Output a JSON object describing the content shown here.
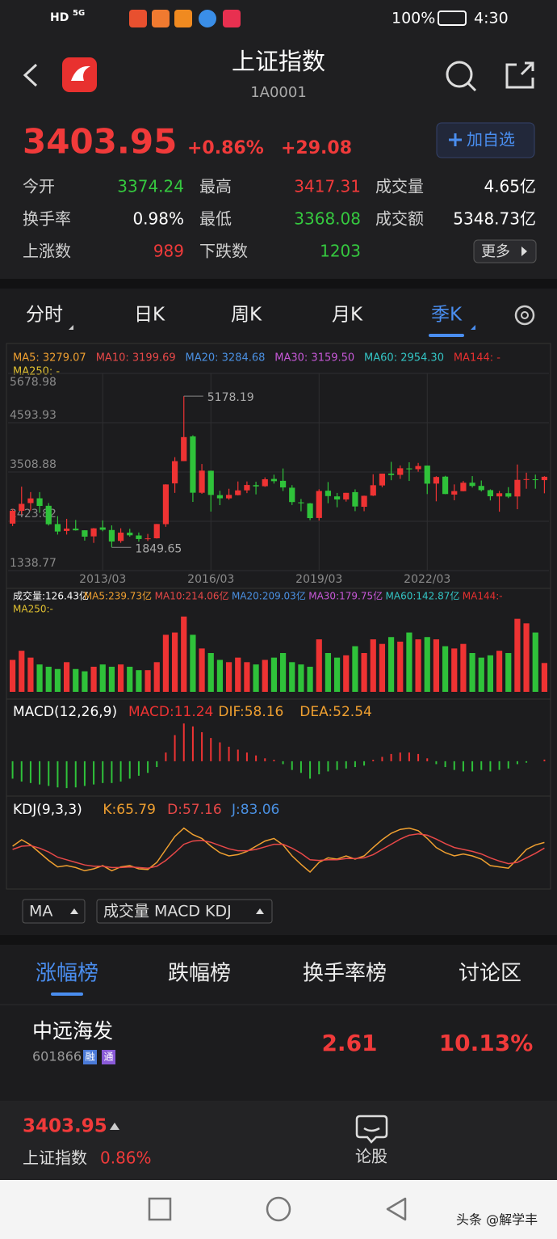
{
  "status_bar": {
    "hd": "HD",
    "network": "5G",
    "battery": "100%",
    "time": "4:30"
  },
  "header": {
    "title": "上证指数",
    "code": "1A0001"
  },
  "quote": {
    "price": "3403.95",
    "change_pct": "+0.86%",
    "change": "+29.08",
    "add_button": "加自选"
  },
  "stats": [
    {
      "label": "今开",
      "value": "3374.24",
      "color": "#35c83f"
    },
    {
      "label": "最高",
      "value": "3417.31",
      "color": "#f03a3a"
    },
    {
      "label": "成交量",
      "value": "4.65亿",
      "color": "#ffffff"
    },
    {
      "label": "换手率",
      "value": "0.98%",
      "color": "#ffffff"
    },
    {
      "label": "最低",
      "value": "3368.08",
      "color": "#35c83f"
    },
    {
      "label": "成交额",
      "value": "5348.73亿",
      "color": "#ffffff"
    },
    {
      "label": "上涨数",
      "value": "989",
      "color": "#f03a3a"
    },
    {
      "label": "下跌数",
      "value": "1203",
      "color": "#35c83f"
    }
  ],
  "more_button": "更多",
  "tabs": [
    "分时",
    "日K",
    "周K",
    "月K",
    "季K"
  ],
  "active_tab": 4,
  "chart_data": {
    "type": "candlestick",
    "ma_legend": [
      {
        "text": "MA5: 3279.07",
        "color": "#f0a030"
      },
      {
        "text": "MA10: 3199.69",
        "color": "#e84848"
      },
      {
        "text": "MA20: 3284.68",
        "color": "#4a90e2"
      },
      {
        "text": "MA30: 3159.50",
        "color": "#c758d8"
      },
      {
        "text": "MA60: 2954.30",
        "color": "#33c4c4"
      },
      {
        "text": "MA144: -",
        "color": "#e83030"
      },
      {
        "text": "MA250: -",
        "color": "#e0c030"
      }
    ],
    "categories": [
      null,
      null,
      null,
      null,
      null,
      null,
      null,
      null,
      null,
      null,
      "2013/03",
      null,
      null,
      null,
      null,
      null,
      null,
      null,
      null,
      null,
      null,
      null,
      "2016/03",
      null,
      null,
      null,
      null,
      null,
      null,
      null,
      null,
      null,
      null,
      null,
      "2019/03",
      null,
      null,
      null,
      null,
      null,
      null,
      null,
      null,
      null,
      null,
      null,
      "2022/03",
      null,
      null,
      null,
      null,
      null,
      null,
      null,
      null,
      null,
      null,
      null,
      null,
      null
    ],
    "open": [
      2373,
      2655,
      2825,
      2930,
      2765,
      2363,
      2212,
      2262,
      2226,
      2092,
      2289,
      2232,
      1992,
      2174,
      2112,
      2036,
      2050,
      2361,
      3258,
      3749,
      4293,
      3052,
      3536,
      3000,
      2929,
      3000,
      3105,
      3220,
      3196,
      3356,
      3315,
      3163,
      2841,
      2819,
      2497,
      3097,
      2972,
      2905,
      3066,
      2743,
      2990,
      3213,
      3474,
      3446,
      3588,
      3571,
      3650,
      3254,
      3407,
      3012,
      3087,
      3273,
      3203,
      3110,
      2972,
      3042,
      2970,
      3336,
      3348,
      3330
    ],
    "high": [
      2700,
      3186,
      3067,
      3067,
      2826,
      2536,
      2478,
      2453,
      2228,
      2276,
      2444,
      2334,
      2270,
      2259,
      2177,
      2146,
      2366,
      3239,
      3835,
      5178.19,
      4317,
      3685,
      3539,
      3097,
      3140,
      3301,
      3301,
      3295,
      3391,
      3450,
      3587,
      3220,
      2915,
      2827,
      3129,
      3288,
      3048,
      3050,
      3127,
      2989,
      3458,
      3474,
      3732,
      3653,
      3723,
      3708,
      3652,
      3416,
      3425,
      3236,
      3311,
      3419,
      3322,
      3127,
      3092,
      3175,
      3674,
      3494,
      3451,
      3417
    ],
    "low": [
      2319,
      2574,
      2661,
      2610,
      2331,
      2132,
      2132,
      2219,
      1999,
      1949,
      2205,
      1849.65,
      1951,
      2086,
      1975,
      1991,
      2043,
      2302,
      3049,
      3748,
      2850,
      3029,
      2638,
      2780,
      2900,
      2994,
      3044,
      3016,
      3182,
      3254,
      3091,
      2782,
      2644,
      2449,
      2440,
      2822,
      2733,
      2857,
      2647,
      2646,
      2980,
      3174,
      3328,
      3357,
      3312,
      3515,
      3023,
      2863,
      3021,
      2886,
      3083,
      3166,
      3081,
      2883,
      2635,
      2935,
      2690,
      3140,
      3141,
      3040
    ],
    "close": [
      2655,
      2808,
      2928,
      2762,
      2359,
      2199,
      2263,
      2225,
      2086,
      2269,
      2237,
      1979,
      2175,
      2116,
      2033,
      2048,
      2364,
      3235,
      3748,
      4277,
      3053,
      3539,
      3004,
      2930,
      3005,
      3104,
      3223,
      3192,
      3349,
      3307,
      3169,
      2847,
      2821,
      2494,
      3091,
      2979,
      2905,
      3050,
      2750,
      2985,
      3218,
      3473,
      3442,
      3591,
      3568,
      3640,
      3252,
      3399,
      3024,
      3089,
      3273,
      3202,
      3110,
      2975,
      3041,
      2967,
      3336,
      3352,
      3336,
      3404
    ],
    "ylim": [
      1338.77,
      5678.98
    ],
    "yticks": [
      1338.77,
      2423.82,
      3508.88,
      4593.93,
      5678.98
    ],
    "max_marker": 5178.19,
    "min_marker": 1849.65,
    "up_color": "#ee3333",
    "down_color": "#2fc23a",
    "grid": true,
    "volume": {
      "legend": [
        {
          "text": "成交量:126.43亿",
          "color": "#ffffff"
        },
        {
          "text": "MA5:239.73亿",
          "color": "#f0a030"
        },
        {
          "text": "MA10:214.06亿",
          "color": "#e84848"
        },
        {
          "text": "MA20:209.03亿",
          "color": "#4a90e2"
        },
        {
          "text": "MA30:179.75亿",
          "color": "#c758d8"
        },
        {
          "text": "MA60:142.87亿",
          "color": "#33c4c4"
        },
        {
          "text": "MA144:-",
          "color": "#e83030"
        },
        {
          "text": "MA250:-",
          "color": "#e0c030"
        }
      ],
      "values": [
        140,
        180,
        150,
        120,
        110,
        100,
        130,
        100,
        90,
        110,
        120,
        110,
        120,
        110,
        95,
        95,
        130,
        250,
        260,
        330,
        250,
        190,
        170,
        140,
        130,
        150,
        130,
        120,
        140,
        150,
        170,
        130,
        120,
        110,
        230,
        170,
        150,
        160,
        200,
        170,
        230,
        210,
        240,
        220,
        260,
        230,
        240,
        230,
        200,
        190,
        210,
        170,
        150,
        160,
        180,
        170,
        320,
        300,
        260,
        126.43
      ],
      "ylim": [
        0,
        340
      ]
    },
    "macd": {
      "legend": [
        {
          "text": "MACD(12,26,9)",
          "color": "#ffffff"
        },
        {
          "text": "MACD:11.24",
          "color": "#ee3333"
        },
        {
          "text": "DIF:58.16",
          "color": "#f0a030"
        },
        {
          "text": "DEA:52.54",
          "color": "#f0a030"
        }
      ],
      "values": [
        -120,
        -140,
        -150,
        -160,
        -170,
        -180,
        -185,
        -180,
        -170,
        -160,
        -150,
        -150,
        -140,
        -120,
        -100,
        -80,
        -40,
        60,
        180,
        260,
        240,
        200,
        160,
        130,
        100,
        80,
        60,
        40,
        20,
        10,
        -20,
        -60,
        -80,
        -120,
        -90,
        -70,
        -60,
        -50,
        -40,
        -30,
        10,
        30,
        50,
        60,
        60,
        50,
        20,
        -20,
        -40,
        -60,
        -70,
        -70,
        -60,
        -70,
        -60,
        -50,
        -20,
        -10,
        0,
        11.24
      ],
      "ylim": [
        -240,
        400
      ]
    },
    "kdj": {
      "legend": [
        {
          "text": "KDJ(9,3,3)",
          "color": "#ffffff"
        },
        {
          "text": "K:65.79",
          "color": "#f0a030"
        },
        {
          "text": "D:57.16",
          "color": "#e84848"
        },
        {
          "text": "J:83.06",
          "color": "#4a90e2"
        }
      ],
      "k": [
        60,
        70,
        62,
        50,
        38,
        28,
        30,
        27,
        22,
        25,
        30,
        22,
        28,
        30,
        25,
        24,
        35,
        55,
        75,
        88,
        78,
        72,
        60,
        50,
        45,
        47,
        52,
        60,
        68,
        72,
        62,
        45,
        32,
        20,
        35,
        42,
        40,
        45,
        40,
        45,
        58,
        70,
        80,
        86,
        88,
        84,
        72,
        58,
        50,
        45,
        48,
        45,
        40,
        30,
        28,
        26,
        40,
        55,
        62,
        65.79
      ],
      "d": [
        55,
        60,
        61,
        57,
        51,
        43,
        39,
        35,
        31,
        29,
        29,
        27,
        27,
        28,
        27,
        26,
        29,
        38,
        50,
        63,
        68,
        69,
        66,
        61,
        56,
        53,
        53,
        55,
        59,
        63,
        63,
        57,
        49,
        39,
        38,
        39,
        39,
        41,
        41,
        42,
        47,
        55,
        63,
        71,
        77,
        79,
        77,
        71,
        64,
        58,
        55,
        52,
        48,
        42,
        37,
        33,
        35,
        42,
        49,
        57.16
      ],
      "ylim": [
        0,
        100
      ]
    }
  },
  "indicator_buttons": [
    "MA",
    "成交量 MACD KDJ"
  ],
  "rank_tabs": [
    "涨幅榜",
    "跌幅榜",
    "换手率榜",
    "讨论区"
  ],
  "active_rank_tab": 0,
  "rank_row": {
    "name": "中远海发",
    "code": "601866",
    "badges": [
      "融",
      "通"
    ],
    "price": "2.61",
    "pct": "10.13%"
  },
  "bottom_bar": {
    "price": "3403.95",
    "name": "上证指数",
    "pct": "0.86%",
    "discuss": "论股"
  },
  "watermark": "头条 @解学丰"
}
